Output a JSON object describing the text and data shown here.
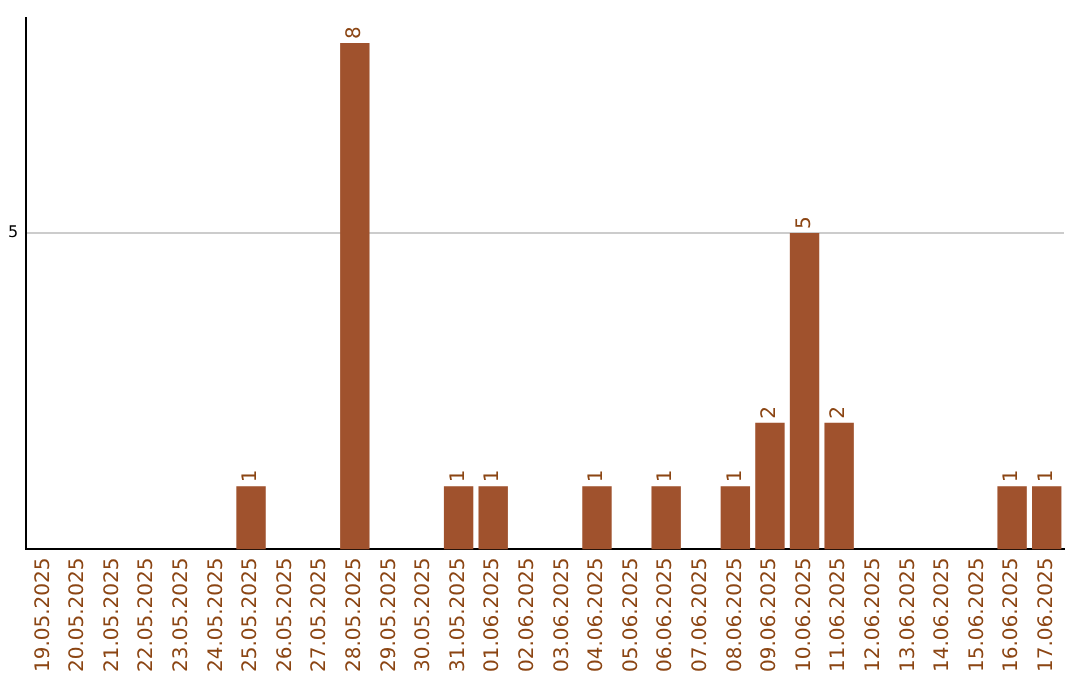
{
  "chart_data": {
    "type": "bar",
    "categories": [
      "19.05.2025",
      "20.05.2025",
      "21.05.2025",
      "22.05.2025",
      "23.05.2025",
      "24.05.2025",
      "25.05.2025",
      "26.05.2025",
      "27.05.2025",
      "28.05.2025",
      "29.05.2025",
      "30.05.2025",
      "31.05.2025",
      "01.06.2025",
      "02.06.2025",
      "03.06.2025",
      "04.06.2025",
      "05.06.2025",
      "06.06.2025",
      "07.06.2025",
      "08.06.2025",
      "09.06.2025",
      "10.06.2025",
      "11.06.2025",
      "12.06.2025",
      "13.06.2025",
      "14.06.2025",
      "15.06.2025",
      "16.06.2025",
      "17.06.2025"
    ],
    "values": [
      0,
      0,
      0,
      0,
      0,
      0,
      1,
      0,
      0,
      8,
      0,
      0,
      1,
      1,
      0,
      0,
      1,
      0,
      1,
      0,
      1,
      2,
      5,
      2,
      0,
      0,
      0,
      0,
      1,
      1
    ],
    "value_labels": [
      null,
      null,
      null,
      null,
      null,
      null,
      "1",
      null,
      null,
      "8",
      null,
      null,
      "1",
      "1",
      null,
      null,
      "1",
      null,
      "1",
      null,
      "1",
      "2",
      "5",
      "2",
      null,
      null,
      null,
      null,
      "1",
      "1"
    ],
    "color": "#a0522d",
    "ylim": [
      0,
      8.4
    ],
    "yticks": [
      5
    ],
    "grid": "y",
    "legend": false
  }
}
